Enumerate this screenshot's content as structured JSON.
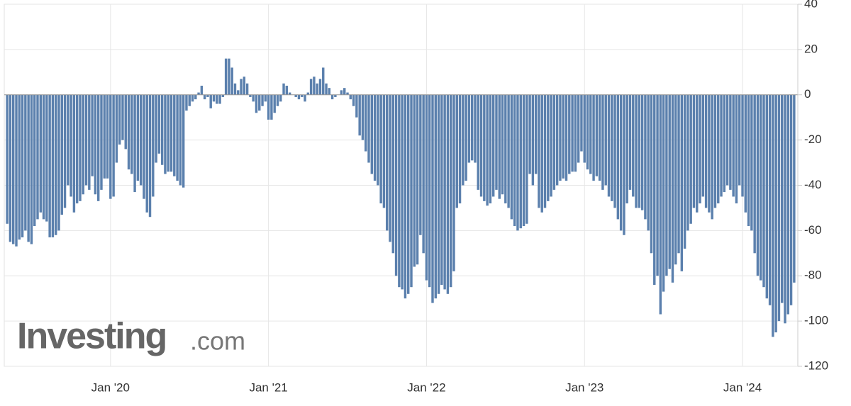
{
  "chart_data": {
    "type": "bar",
    "color": "#5b80ad",
    "ylim": [
      -120,
      40
    ],
    "yticks": [
      40,
      20,
      0,
      -20,
      -40,
      -60,
      -80,
      -100,
      -120
    ],
    "grid": true,
    "watermark": {
      "brand": "Investing",
      "suffix": ".com"
    },
    "categories": [
      null,
      null,
      null,
      null,
      null,
      null,
      null,
      null,
      null,
      null,
      null,
      null,
      null,
      null,
      null,
      null,
      null,
      null,
      null,
      null,
      null,
      null,
      null,
      null,
      null,
      null,
      null,
      null,
      null,
      null,
      null,
      null,
      null,
      null,
      "Jan '20",
      null,
      null,
      null,
      null,
      null,
      null,
      null,
      null,
      null,
      null,
      null,
      null,
      null,
      null,
      null,
      null,
      null,
      null,
      null,
      null,
      null,
      null,
      null,
      null,
      null,
      null,
      null,
      null,
      null,
      null,
      null,
      null,
      null,
      null,
      null,
      null,
      null,
      null,
      null,
      null,
      null,
      null,
      null,
      null,
      null,
      null,
      null,
      null,
      null,
      null,
      null,
      "Jan '21",
      null,
      null,
      null,
      null,
      null,
      null,
      null,
      null,
      null,
      null,
      null,
      null,
      null,
      null,
      null,
      null,
      null,
      null,
      null,
      null,
      null,
      null,
      null,
      null,
      null,
      null,
      null,
      null,
      null,
      null,
      null,
      null,
      null,
      null,
      null,
      null,
      null,
      null,
      null,
      null,
      null,
      null,
      null,
      null,
      null,
      null,
      null,
      null,
      null,
      null,
      null,
      "Jan '22",
      null,
      null,
      null,
      null,
      null,
      null,
      null,
      null,
      null,
      null,
      null,
      null,
      null,
      null,
      null,
      null,
      null,
      null,
      null,
      null,
      null,
      null,
      null,
      null,
      null,
      null,
      null,
      null,
      null,
      null,
      null,
      null,
      null,
      null,
      null,
      null,
      null,
      null,
      null,
      null,
      null,
      null,
      null,
      null,
      null,
      null,
      null,
      null,
      null,
      null,
      null,
      "Jan '23",
      null,
      null,
      null,
      null,
      null,
      null,
      null,
      null,
      null,
      null,
      null,
      null,
      null,
      null,
      null,
      null,
      null,
      null,
      null,
      null,
      null,
      null,
      null,
      null,
      null,
      null,
      null,
      null,
      null,
      null,
      null,
      null,
      null,
      null,
      null,
      null,
      null,
      null,
      null,
      null,
      null,
      null,
      null,
      null,
      null,
      null,
      null,
      null,
      null,
      null,
      null,
      "Jan '24",
      null,
      null,
      null,
      null,
      null,
      null,
      null,
      null,
      null,
      null,
      null,
      null,
      null,
      null,
      null,
      null,
      null
    ],
    "values": [
      -57,
      -65,
      -66,
      -67,
      -64,
      -63,
      -60,
      -65,
      -66,
      -58,
      -55,
      -52,
      -55,
      -56,
      -63,
      -63,
      -62,
      -60,
      -53,
      -50,
      -40,
      -45,
      -52,
      -48,
      -47,
      -44,
      -40,
      -42,
      -36,
      -44,
      -47,
      -42,
      -37,
      -37,
      -46,
      -45,
      -30,
      -22,
      -20,
      -24,
      -33,
      -35,
      -43,
      -38,
      -40,
      -46,
      -52,
      -54,
      -45,
      -30,
      -26,
      -31,
      -35,
      -34,
      -34,
      -36,
      -38,
      -40,
      -41,
      -7,
      -5,
      -3,
      -2,
      1,
      4,
      -2,
      -1,
      -6,
      -3,
      -4,
      -4,
      -1,
      16,
      16,
      12,
      5,
      2,
      7,
      8,
      5,
      -1,
      -3,
      -8,
      -7,
      -5,
      -3,
      -11,
      -11,
      -8,
      -5,
      -3,
      5,
      4,
      1,
      0,
      -1,
      -2,
      -1,
      -3,
      1,
      7,
      8,
      5,
      7,
      12,
      5,
      3,
      -2,
      -1,
      0,
      2,
      3,
      1,
      -2,
      -5,
      -10,
      -18,
      -20,
      -25,
      -30,
      -35,
      -38,
      -40,
      -48,
      -50,
      -60,
      -65,
      -70,
      -80,
      -85,
      -86,
      -90,
      -88,
      -85,
      -76,
      -75,
      -62,
      -70,
      -82,
      -85,
      -92,
      -90,
      -88,
      -84,
      -86,
      -88,
      -85,
      -78,
      -50,
      -48,
      -40,
      -38,
      -30,
      -29,
      -30,
      -42,
      -45,
      -47,
      -49,
      -48,
      -45,
      -42,
      -46,
      -44,
      -48,
      -50,
      -55,
      -58,
      -60,
      -59,
      -58,
      -57,
      -35,
      -40,
      -35,
      -50,
      -52,
      -50,
      -47,
      -45,
      -42,
      -40,
      -38,
      -37,
      -38,
      -35,
      -34,
      -34,
      -30,
      -25,
      -30,
      -33,
      -35,
      -38,
      -36,
      -38,
      -42,
      -40,
      -45,
      -47,
      -50,
      -55,
      -60,
      -62,
      -48,
      -42,
      -45,
      -50,
      -50,
      -51,
      -55,
      -60,
      -70,
      -84,
      -80,
      -97,
      -87,
      -80,
      -77,
      -83,
      -75,
      -70,
      -78,
      -68,
      -60,
      -57,
      -50,
      -52,
      -48,
      -45,
      -50,
      -52,
      -55,
      -50,
      -48,
      -45,
      -43,
      -40,
      -42,
      -45,
      -48,
      -40,
      -45,
      -52,
      -58,
      -60,
      -70,
      -80,
      -82,
      -85,
      -90,
      -93,
      -107,
      -105,
      -100,
      -92,
      -101,
      -97,
      -93,
      -83
    ]
  }
}
